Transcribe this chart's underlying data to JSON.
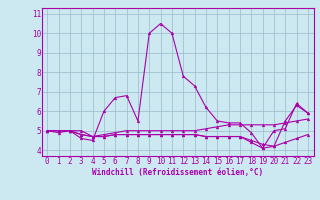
{
  "title": "",
  "xlabel": "Windchill (Refroidissement éolien,°C)",
  "bg_color": "#cce8f0",
  "line_color": "#aa00aa",
  "grid_color": "#99bbcc",
  "xlim": [
    -0.5,
    23.5
  ],
  "ylim": [
    3.7,
    11.3
  ],
  "yticks": [
    4,
    5,
    6,
    7,
    8,
    9,
    10,
    11
  ],
  "xticks": [
    0,
    1,
    2,
    3,
    4,
    5,
    6,
    7,
    8,
    9,
    10,
    11,
    12,
    13,
    14,
    15,
    16,
    17,
    18,
    19,
    20,
    21,
    22,
    23
  ],
  "series": [
    [
      5.0,
      4.9,
      5.0,
      4.6,
      4.5,
      6.0,
      6.7,
      6.8,
      5.5,
      10.0,
      10.5,
      10.0,
      7.8,
      7.3,
      6.2,
      5.5,
      5.4,
      5.4,
      4.9,
      4.1,
      5.0,
      5.1,
      6.4,
      5.9
    ],
    [
      5.0,
      5.0,
      5.0,
      5.0,
      4.7,
      4.8,
      4.9,
      5.0,
      5.0,
      5.0,
      5.0,
      5.0,
      5.0,
      5.0,
      5.1,
      5.2,
      5.3,
      5.3,
      5.3,
      5.3,
      5.3,
      5.4,
      5.5,
      5.6
    ],
    [
      5.0,
      5.0,
      5.0,
      4.8,
      4.7,
      4.7,
      4.8,
      4.8,
      4.8,
      4.8,
      4.8,
      4.8,
      4.8,
      4.8,
      4.7,
      4.7,
      4.7,
      4.7,
      4.5,
      4.3,
      4.2,
      4.4,
      4.6,
      4.8
    ],
    [
      5.0,
      5.0,
      5.0,
      4.8,
      4.7,
      4.7,
      4.8,
      4.8,
      4.8,
      4.8,
      4.8,
      4.8,
      4.8,
      4.8,
      4.7,
      4.7,
      4.7,
      4.7,
      4.4,
      4.1,
      4.2,
      5.5,
      6.3,
      5.9
    ]
  ],
  "tick_fontsize": 5.5,
  "xlabel_fontsize": 5.5
}
